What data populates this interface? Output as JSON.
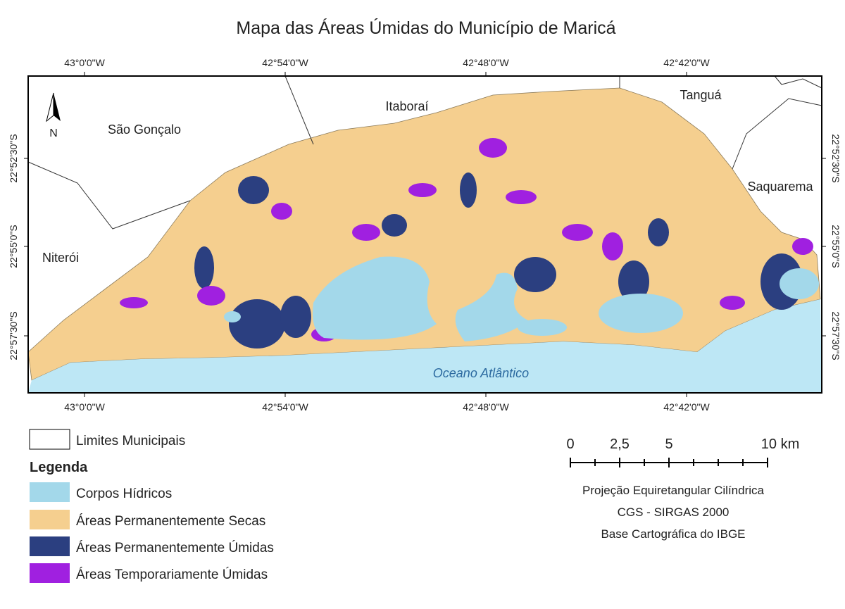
{
  "title": "Mapa das Áreas Úmidas do Município de Maricá",
  "map": {
    "top_labels": [
      "43°0'0\"W",
      "42°54'0\"W",
      "42°48'0\"W",
      "42°42'0\"W"
    ],
    "bottom_labels": [
      "43°0'0\"W",
      "42°54'0\"W",
      "42°48'0\"W",
      "42°42'0\"W"
    ],
    "left_labels": [
      "22°52'30\"S",
      "22°55'0\"S",
      "22°57'30\"S"
    ],
    "right_labels": [
      "22°52'30\"S",
      "22°55'0\"S",
      "22°57'30\"S"
    ],
    "places": [
      "São Gonçalo",
      "Itaboraí",
      "Tanguá",
      "Saquarema",
      "Niterói"
    ],
    "ocean": "Oceano Atlântico",
    "north": "N"
  },
  "legend": {
    "boundary": "Limites Municipais",
    "title": "Legenda",
    "items": [
      "Corpos Hídricos",
      "Áreas Permanentemente Secas",
      "Áreas Permanentemente Úmidas",
      "Áreas Temporariamente Úmidas"
    ]
  },
  "scale_bar": {
    "labels": [
      "0",
      "2,5",
      "5",
      "10 km"
    ]
  },
  "projection": [
    "Projeção Equiretangular Cilíndrica",
    "CGS - SIRGAS 2000",
    "Base Cartográfica do IBGE"
  ]
}
